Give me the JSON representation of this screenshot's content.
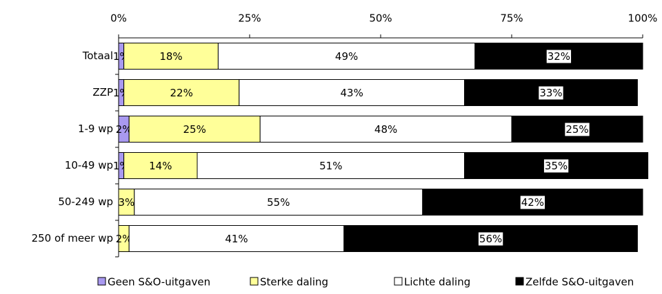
{
  "chart_data": {
    "type": "stacked_bar_horizontal",
    "categories": [
      "Totaal",
      "ZZP",
      "1-9 wp",
      "10-49 wp",
      "50-249 wp",
      "250 of meer wp"
    ],
    "series": [
      {
        "name": "Geen S&O-uitgaven",
        "color": "#a999f0",
        "values": [
          1,
          1,
          2,
          1,
          null,
          null
        ],
        "value_labels": [
          "1%",
          "1%",
          "2%",
          "1%",
          null,
          null
        ]
      },
      {
        "name": "Sterke daling",
        "color": "#ffff99",
        "values": [
          18,
          22,
          25,
          14,
          3,
          2
        ],
        "value_labels": [
          "18%",
          "22%",
          "25%",
          "14%",
          "3%",
          "2%"
        ]
      },
      {
        "name": "Lichte daling",
        "color": "#ffffff",
        "values": [
          49,
          43,
          48,
          51,
          55,
          41
        ],
        "value_labels": [
          "49%",
          "43%",
          "48%",
          "51%",
          "55%",
          "41%"
        ]
      },
      {
        "name": "Zelfde S&O-uitgaven",
        "color": "#000000",
        "values": [
          32,
          33,
          25,
          35,
          42,
          56
        ],
        "value_labels": [
          "32%",
          "33%",
          "25%",
          "35%",
          "42%",
          "56%"
        ]
      }
    ],
    "xlim": [
      0,
      100
    ],
    "xticks": [
      {
        "value": 0,
        "label": "0%"
      },
      {
        "value": 25,
        "label": "25%"
      },
      {
        "value": 50,
        "label": "50%"
      },
      {
        "value": 75,
        "label": "75%"
      },
      {
        "value": 100,
        "label": "100%"
      }
    ],
    "legend": "bottom"
  }
}
